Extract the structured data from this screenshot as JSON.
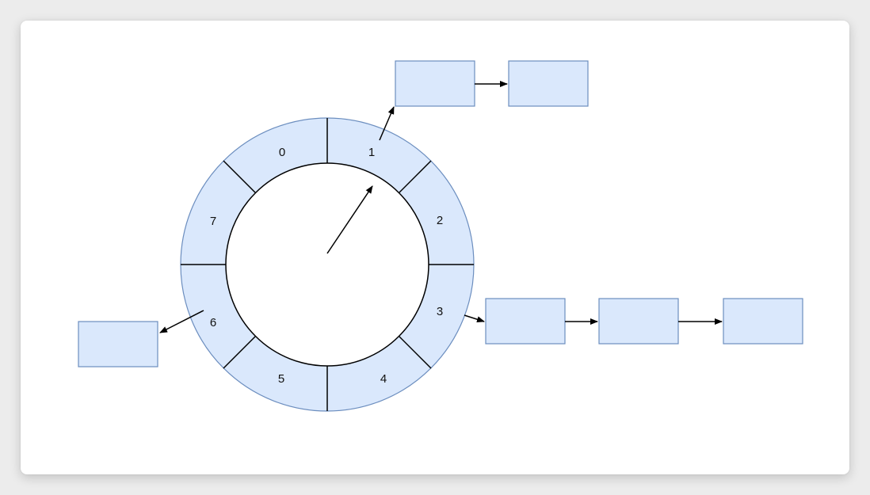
{
  "colors": {
    "node_fill": "#dae8fc",
    "node_stroke": "#6c8ebf",
    "line": "#000000",
    "background": "#ffffff"
  },
  "wheel": {
    "slots": [
      {
        "label": "0"
      },
      {
        "label": "1"
      },
      {
        "label": "2"
      },
      {
        "label": "3"
      },
      {
        "label": "4"
      },
      {
        "label": "5"
      },
      {
        "label": "6"
      },
      {
        "label": "7"
      }
    ]
  },
  "bucket_lists": [
    {
      "slot": "1",
      "node_count": 2
    },
    {
      "slot": "3",
      "node_count": 3
    },
    {
      "slot": "6",
      "node_count": 1
    }
  ]
}
